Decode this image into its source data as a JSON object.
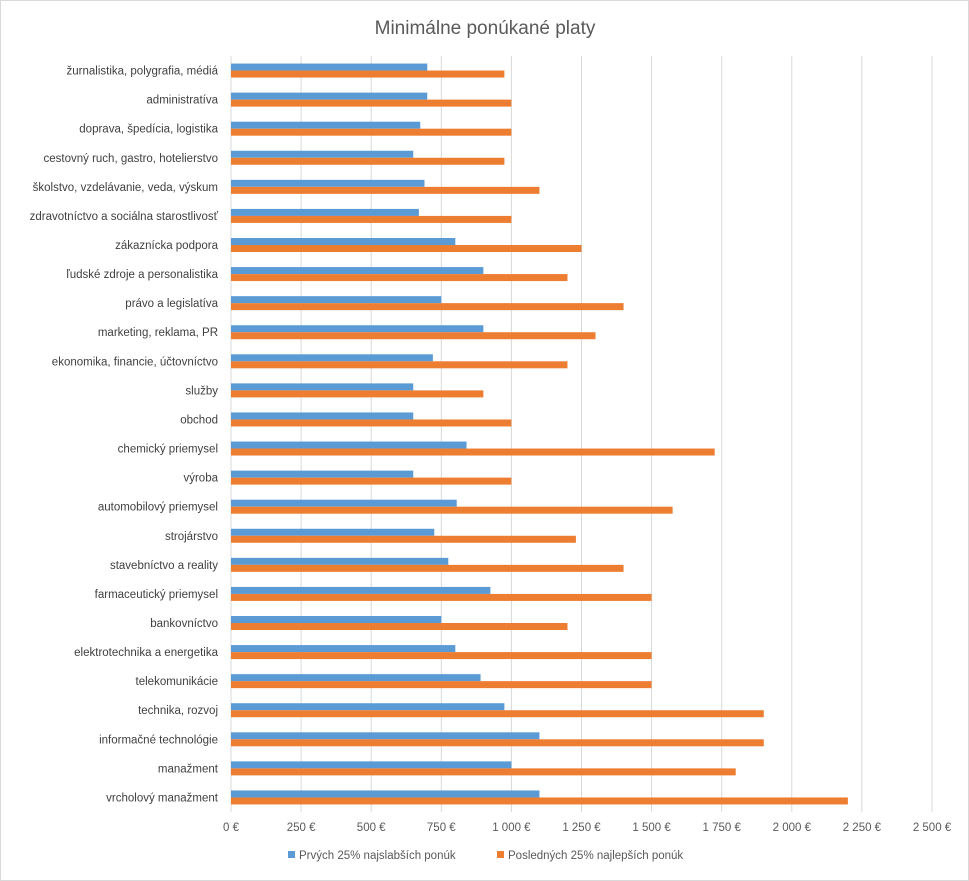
{
  "chart_data": {
    "type": "bar",
    "orientation": "horizontal",
    "title": "Minimálne ponúkané platy",
    "xlabel": "",
    "ylabel": "",
    "xlim": [
      0,
      2500
    ],
    "xticks": [
      0,
      250,
      500,
      750,
      1000,
      1250,
      1500,
      1750,
      2000,
      2250,
      2500
    ],
    "tick_labels": [
      "0 €",
      "250 €",
      "500 €",
      "750 €",
      "1 000 €",
      "1 250 €",
      "1 500 €",
      "1 750 €",
      "2 000 €",
      "2 250 €",
      "2 500 €"
    ],
    "grid": "vertical",
    "legend_position": "bottom",
    "categories": [
      "žurnalistika, polygrafia, médiá",
      "administratíva",
      "doprava, špedícia, logistika",
      "cestovný ruch, gastro, hotelierstvo",
      "školstvo, vzdelávanie, veda, výskum",
      "zdravotníctvo a sociálna starostlivosť",
      "zákaznícka podpora",
      "ľudské zdroje a personalistika",
      "právo a legislatíva",
      "marketing, reklama, PR",
      "ekonomika, financie, účtovníctvo",
      "služby",
      "obchod",
      "chemický priemysel",
      "výroba",
      "automobilový priemysel",
      "strojárstvo",
      "stavebníctvo a reality",
      "farmaceutický priemysel",
      "bankovníctvo",
      "elektrotechnika a energetika",
      "telekomunikácie",
      "technika, rozvoj",
      "informačné technológie",
      "manažment",
      "vrcholový manažment"
    ],
    "series": [
      {
        "name": "Prvých 25% najslabších ponúk",
        "color": "#5b9bd5",
        "values": [
          700,
          700,
          675,
          650,
          690,
          670,
          800,
          900,
          750,
          900,
          720,
          650,
          650,
          840,
          650,
          805,
          725,
          775,
          925,
          750,
          800,
          890,
          975,
          1100,
          1000,
          1100
        ]
      },
      {
        "name": "Posledných 25% najlepších ponúk",
        "color": "#ed7d31",
        "values": [
          975,
          1000,
          1000,
          975,
          1100,
          1000,
          1250,
          1200,
          1400,
          1300,
          1200,
          900,
          1000,
          1725,
          1000,
          1575,
          1230,
          1400,
          1500,
          1200,
          1500,
          1500,
          1900,
          1900,
          1800,
          2200
        ]
      }
    ]
  }
}
